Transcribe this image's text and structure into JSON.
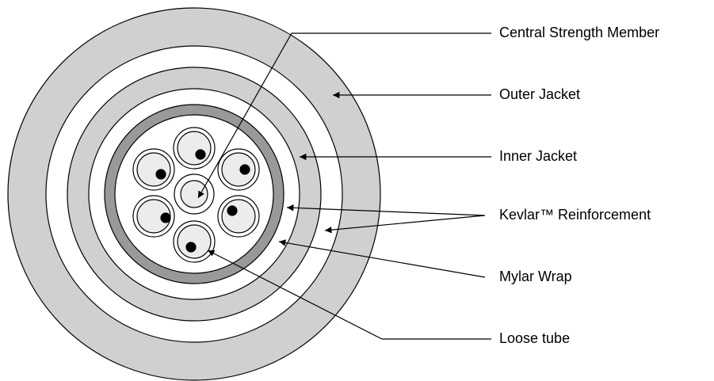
{
  "labels": [
    "Central Strength Member",
    "Outer Jacket",
    "Inner Jacket",
    "Kevlar™ Reinforcement",
    "Mylar Wrap",
    "Loose tube"
  ]
}
